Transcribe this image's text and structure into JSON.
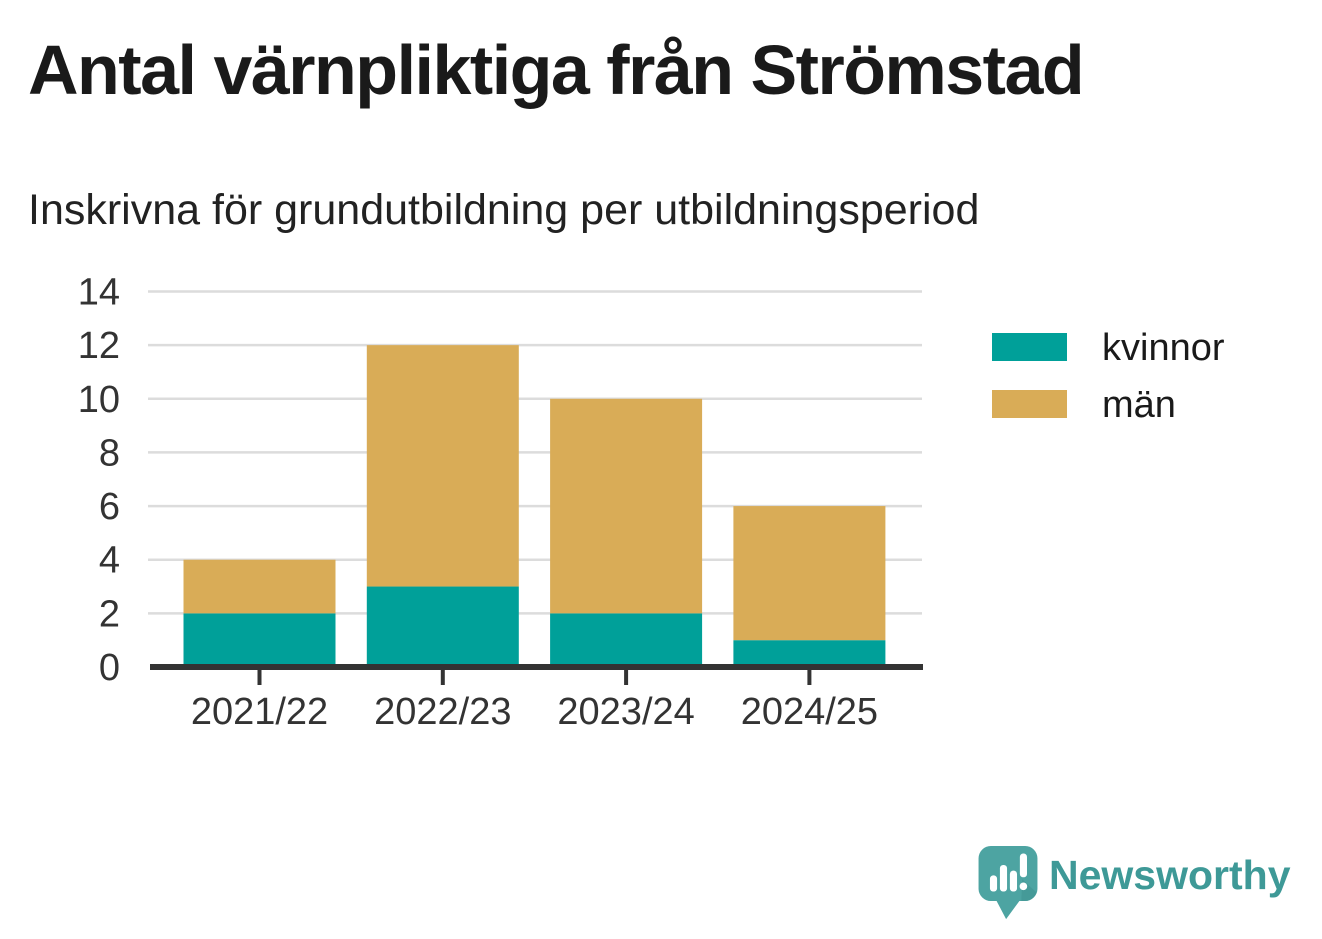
{
  "page": {
    "title": "Antal värnpliktiga från Strömstad",
    "subtitle": "Inskrivna för grundutbildning per utbildningsperiod"
  },
  "chart_data": {
    "type": "bar",
    "stacked": true,
    "title": "Antal värnpliktiga från Strömstad",
    "subtitle": "Inskrivna för grundutbildning per utbildningsperiod",
    "categories": [
      "2021/22",
      "2022/23",
      "2023/24",
      "2024/25"
    ],
    "series": [
      {
        "name": "kvinnor",
        "color": "#00a099",
        "values": [
          2,
          3,
          2,
          1
        ]
      },
      {
        "name": "män",
        "color": "#d9ac57",
        "values": [
          2,
          9,
          8,
          5
        ]
      }
    ],
    "stack_totals": [
      4,
      12,
      10,
      6
    ],
    "xlabel": "",
    "ylabel": "",
    "ylim": [
      0,
      14
    ],
    "yticks": [
      0,
      2,
      4,
      6,
      8,
      10,
      12,
      14
    ],
    "grid": "horizontal",
    "legend_position": "right",
    "legend_entries": [
      "kvinnor",
      "män"
    ]
  },
  "style_colors": {
    "axis": "#333333",
    "tick_label": "#333333",
    "gridline": "#dcdcdc",
    "kvinnor": "#00a099",
    "man": "#d9ac57"
  },
  "branding": {
    "logo_text": "Newsworthy",
    "logo_text_color": "#3e9997",
    "logo_icon_color": "#4da4a2",
    "logo_icon_shade_color": "#3f918f"
  }
}
